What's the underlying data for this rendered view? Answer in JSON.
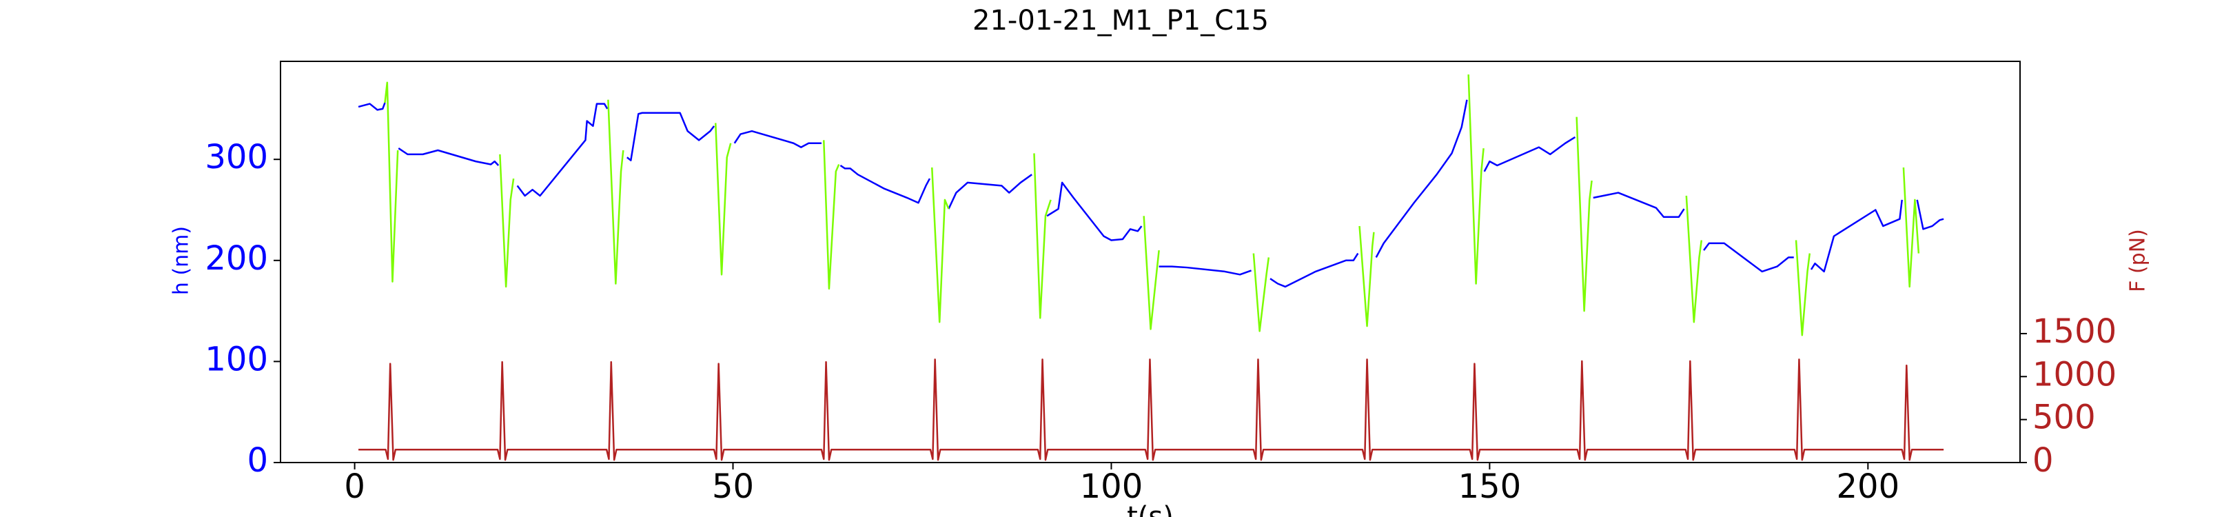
{
  "chart_data": {
    "type": "line",
    "title": "21-01-21_M1_P1_C15",
    "x_label": "t(s)",
    "y_label": "h (nm)",
    "y2_label": "F (pN)",
    "y_color": "#0000ff",
    "y2_color": "#b22222",
    "xlim": [
      -9.8,
      220.1
    ],
    "xticks": [
      0,
      50,
      100,
      150,
      200
    ],
    "ylim": [
      0,
      397
    ],
    "yticks": [
      0,
      100,
      200,
      300
    ],
    "y2lim": [
      0,
      4667
    ],
    "y2ticks": [
      0,
      500,
      1000,
      1500
    ],
    "series": [
      {
        "color": "#0000ff",
        "axis": "y",
        "x": [
          0.5,
          2,
          3,
          3.7,
          4.0,
          null,
          5.8,
          7,
          9,
          11,
          16,
          18,
          18.5,
          19,
          null,
          21.5,
          22.5,
          23.5,
          24.5,
          30.5,
          30.7,
          31.5,
          32,
          33,
          33.4,
          null,
          36,
          36.5,
          37.5,
          38,
          43,
          44,
          45.5,
          47,
          47.5,
          null,
          50.2,
          51,
          52.5,
          58,
          59,
          60,
          61.7,
          null,
          64.2,
          64.8,
          65.5,
          66.5,
          70,
          73,
          74.5,
          75.5,
          76,
          null,
          78.5,
          79.5,
          81,
          85.5,
          86.5,
          88,
          89.5,
          null,
          91.5,
          93,
          93.5,
          95,
          99,
          100,
          101.5,
          102.5,
          103.5,
          104,
          null,
          106.3,
          108,
          110,
          115,
          117,
          118.5,
          null,
          121,
          122,
          123,
          127,
          131,
          132,
          132.6,
          null,
          135,
          136,
          140,
          143,
          145,
          146.3,
          147,
          null,
          149.3,
          150,
          151,
          156.5,
          158,
          160,
          161.3,
          null,
          163.7,
          165,
          167,
          172,
          173,
          175,
          175.7,
          null,
          178.3,
          179,
          181,
          186,
          188,
          189.5,
          190.2,
          null,
          192.5,
          193,
          194.2,
          195.5,
          201,
          202,
          204.2,
          204.5,
          null,
          206.5,
          207.3,
          208.5,
          209.5,
          210
        ],
        "values": [
          352,
          355,
          349,
          350,
          356,
          null,
          311,
          305,
          305,
          309,
          298,
          295,
          298,
          294,
          null,
          274,
          264,
          270,
          264,
          319,
          338,
          333,
          355,
          355,
          350,
          null,
          302,
          299,
          345,
          346,
          346,
          328,
          319,
          328,
          333,
          null,
          316,
          325,
          328,
          316,
          312,
          316,
          316,
          null,
          294,
          291,
          291,
          285,
          271,
          262,
          257,
          274,
          281,
          null,
          251,
          267,
          277,
          274,
          267,
          277,
          285,
          null,
          244,
          251,
          277,
          262,
          224,
          220,
          221,
          231,
          229,
          234,
          null,
          194,
          194,
          193,
          189,
          186,
          190,
          null,
          182,
          177,
          174,
          189,
          200,
          200,
          207,
          null,
          203,
          217,
          257,
          285,
          306,
          332,
          359,
          null,
          288,
          298,
          294,
          312,
          305,
          316,
          322,
          null,
          262,
          264,
          267,
          252,
          243,
          243,
          251,
          null,
          210,
          217,
          217,
          189,
          194,
          203,
          203,
          null,
          191,
          197,
          189,
          224,
          250,
          234,
          241,
          260,
          null,
          260,
          231,
          234,
          240,
          241
        ]
      },
      {
        "color": "#7cfc00",
        "axis": "y",
        "x": [
          4.0,
          4.3,
          5.0,
          5.7,
          null,
          19.2,
          20,
          20.6,
          21,
          null,
          33.5,
          34.5,
          35.2,
          35.5,
          null,
          47.7,
          48.5,
          49.2,
          49.7,
          null,
          62,
          62.7,
          63.6,
          64,
          null,
          76.3,
          77.3,
          78,
          78.5,
          null,
          89.8,
          90.6,
          91.3,
          92,
          null,
          104.3,
          105.2,
          106,
          106.3,
          null,
          118.8,
          119.6,
          120.5,
          120.8,
          null,
          132.8,
          133.8,
          134.5,
          134.7,
          null,
          147.2,
          148.2,
          148.9,
          149.2,
          null,
          161.5,
          162.5,
          163.2,
          163.5,
          null,
          176,
          177,
          177.7,
          178,
          null,
          190.5,
          191.3,
          192,
          192.3,
          null,
          204.7,
          205.5,
          206.2,
          206.7
        ],
        "values": [
          356,
          376,
          179,
          309,
          null,
          305,
          174,
          260,
          281,
          null,
          359,
          177,
          288,
          309,
          null,
          336,
          186,
          302,
          316,
          null,
          319,
          172,
          288,
          295,
          null,
          292,
          139,
          260,
          251,
          null,
          306,
          143,
          244,
          260,
          null,
          244,
          132,
          189,
          210,
          null,
          207,
          130,
          186,
          203,
          null,
          234,
          135,
          214,
          228,
          null,
          384,
          177,
          288,
          311,
          null,
          342,
          150,
          260,
          279,
          null,
          264,
          139,
          203,
          220,
          null,
          220,
          126,
          189,
          207,
          null,
          292,
          174,
          260,
          207
        ]
      },
      {
        "color": "#b22222",
        "axis": "y2",
        "x": [
          0.5,
          4.1,
          4.4,
          4.7,
          5.1,
          5.4,
          18.9,
          19.2,
          19.5,
          19.9,
          20.2,
          33.3,
          33.6,
          33.9,
          34.3,
          34.6,
          47.5,
          47.8,
          48.1,
          48.5,
          48.8,
          61.7,
          62.0,
          62.3,
          62.7,
          63.0,
          76.1,
          76.4,
          76.7,
          77.1,
          77.4,
          90.3,
          90.6,
          90.9,
          91.3,
          91.6,
          104.5,
          104.8,
          105.1,
          105.5,
          105.8,
          118.8,
          119.1,
          119.4,
          119.8,
          120.1,
          133.2,
          133.5,
          133.8,
          134.2,
          134.5,
          147.4,
          147.7,
          148.0,
          148.4,
          148.7,
          161.6,
          161.9,
          162.2,
          162.6,
          162.9,
          175.9,
          176.2,
          176.5,
          176.9,
          177.2,
          190.3,
          190.6,
          190.9,
          191.3,
          191.6,
          204.5,
          204.8,
          205.1,
          205.5,
          205.8,
          210
        ],
        "values": [
          150,
          150,
          40,
          1150,
          30,
          150,
          150,
          40,
          1170,
          30,
          150,
          150,
          40,
          1170,
          30,
          150,
          150,
          40,
          1150,
          30,
          150,
          150,
          40,
          1170,
          30,
          150,
          150,
          40,
          1200,
          30,
          150,
          150,
          40,
          1200,
          30,
          150,
          150,
          40,
          1200,
          30,
          150,
          150,
          40,
          1200,
          30,
          150,
          150,
          40,
          1200,
          30,
          150,
          150,
          40,
          1150,
          30,
          150,
          150,
          40,
          1180,
          30,
          150,
          150,
          40,
          1180,
          30,
          150,
          150,
          40,
          1200,
          30,
          150,
          150,
          40,
          1130,
          30,
          150,
          150
        ]
      }
    ]
  }
}
